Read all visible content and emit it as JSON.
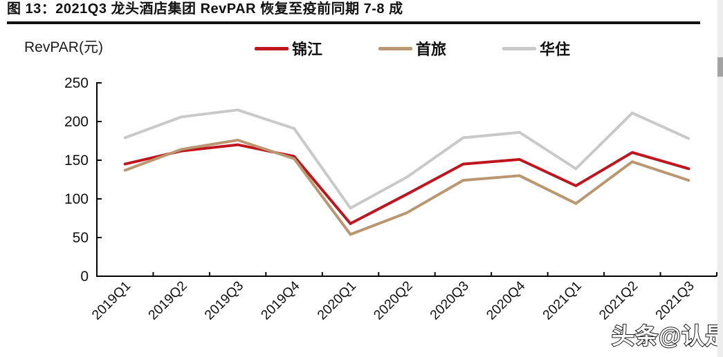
{
  "title": "图 13：2021Q3 龙头酒店集团 RevPAR 恢复至疫前同期 7-8 成",
  "watermark": "头条@认是",
  "chart_data": {
    "type": "line",
    "title": "2021Q3 龙头酒店集团 RevPAR 恢复至疫前同期 7-8 成",
    "ylabel": "RevPAR(元)",
    "xlabel": "",
    "ylim": [
      0,
      250
    ],
    "yticks": [
      0,
      50,
      100,
      150,
      200,
      250
    ],
    "grid": false,
    "legend_position": "top",
    "categories": [
      "2019Q1",
      "2019Q2",
      "2019Q3",
      "2019Q4",
      "2020Q1",
      "2020Q2",
      "2020Q3",
      "2020Q4",
      "2021Q1",
      "2021Q2",
      "2021Q3"
    ],
    "series": [
      {
        "name": "锦江",
        "color": "#c0151f",
        "values": [
          145,
          162,
          170,
          155,
          68,
          106,
          145,
          151,
          117,
          160,
          139
        ]
      },
      {
        "name": "首旅",
        "color": "#ba9770",
        "values": [
          137,
          164,
          176,
          152,
          54,
          82,
          124,
          130,
          94,
          148,
          124
        ]
      },
      {
        "name": "华住",
        "color": "#c9c9c9",
        "values": [
          179,
          206,
          215,
          191,
          88,
          128,
          179,
          186,
          139,
          211,
          178
        ]
      }
    ]
  }
}
